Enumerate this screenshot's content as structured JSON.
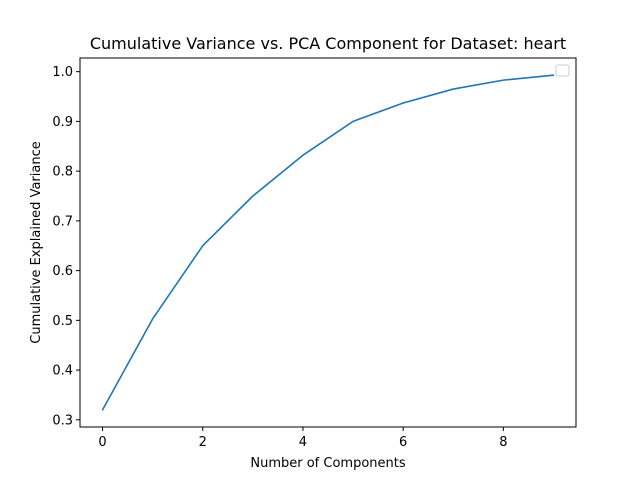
{
  "chart_data": {
    "type": "line",
    "title": "Cumulative Variance vs. PCA Component for Dataset: heart",
    "xlabel": "Number of Components",
    "ylabel": "Cumulative Explained Variance",
    "x": [
      0,
      1,
      2,
      3,
      4,
      5,
      6,
      7,
      8,
      9
    ],
    "series": [
      {
        "values": [
          0.32,
          0.503,
          0.65,
          0.75,
          0.832,
          0.9,
          0.937,
          0.965,
          0.983,
          0.993
        ],
        "color": "#1f77b4"
      }
    ],
    "xlim": [
      -0.45,
      9.45
    ],
    "ylim": [
      0.2855,
      1.0275
    ],
    "xticks": [
      0,
      2,
      4,
      6,
      8
    ],
    "xtick_labels": [
      "0",
      "2",
      "4",
      "6",
      "8"
    ],
    "yticks": [
      0.3,
      0.4,
      0.5,
      0.6,
      0.7,
      0.8,
      0.9,
      1.0
    ],
    "ytick_labels": [
      "0.3",
      "0.4",
      "0.5",
      "0.6",
      "0.7",
      "0.8",
      "0.9",
      "1.0"
    ],
    "grid": false,
    "legend": "top-right (empty)"
  }
}
